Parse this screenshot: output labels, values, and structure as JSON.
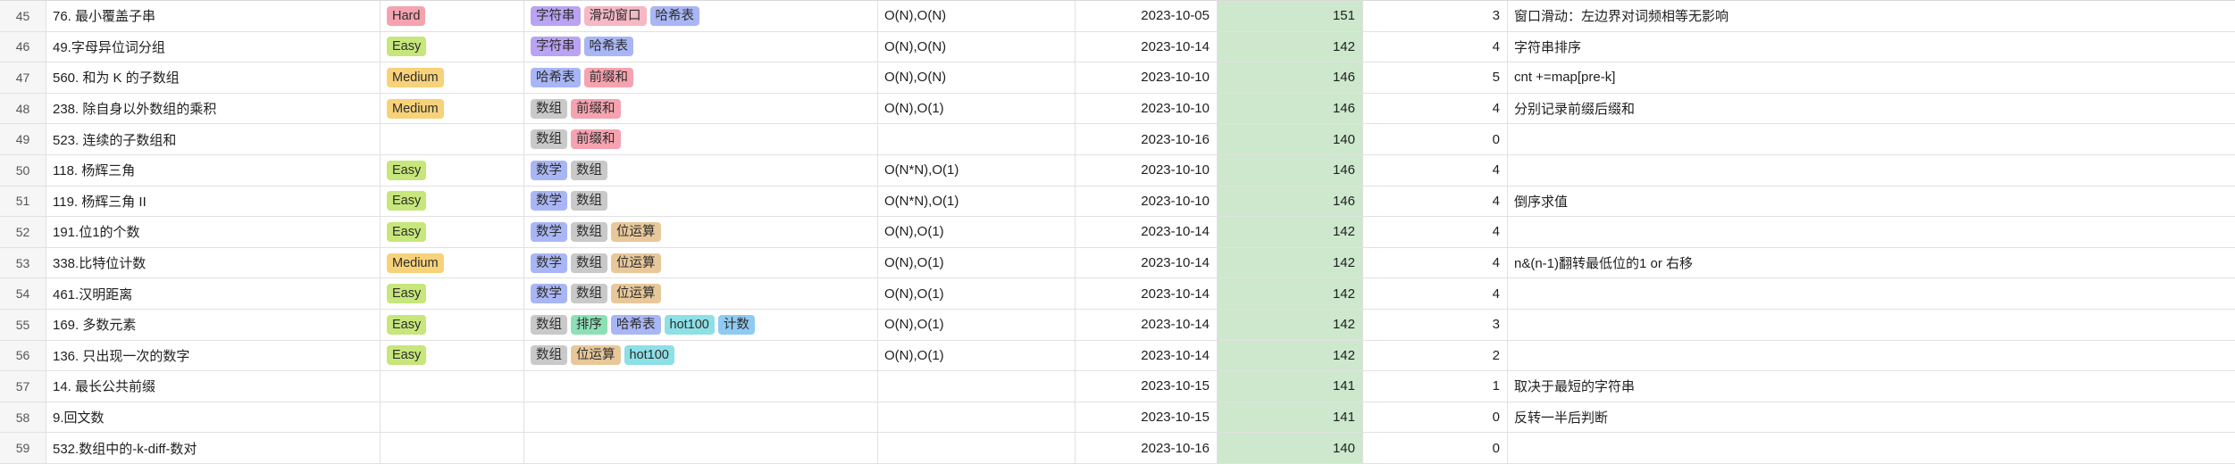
{
  "rows": [
    {
      "num": "45",
      "title": "76. 最小覆盖子串",
      "difficulty": "Hard",
      "diff_class": "diff-hard",
      "tags": [
        {
          "label": "字符串",
          "cls": "tag-zifuchuan"
        },
        {
          "label": "滑动窗口",
          "cls": "tag-huadong"
        },
        {
          "label": "哈希表",
          "cls": "tag-haxi"
        }
      ],
      "complexity": "O(N),O(N)",
      "date": "2023-10-05",
      "days": "151",
      "count": "3",
      "note": "窗口滑动：左边界对词频相等无影响"
    },
    {
      "num": "46",
      "title": "49.字母异位词分组",
      "difficulty": "Easy",
      "diff_class": "diff-easy",
      "tags": [
        {
          "label": "字符串",
          "cls": "tag-zifuchuan"
        },
        {
          "label": "哈希表",
          "cls": "tag-haxi"
        }
      ],
      "complexity": "O(N),O(N)",
      "date": "2023-10-14",
      "days": "142",
      "count": "4",
      "note": "字符串排序"
    },
    {
      "num": "47",
      "title": "560. 和为 K 的子数组",
      "difficulty": "Medium",
      "diff_class": "diff-medium",
      "tags": [
        {
          "label": "哈希表",
          "cls": "tag-haxi"
        },
        {
          "label": "前缀和",
          "cls": "tag-qianzhui"
        }
      ],
      "complexity": "O(N),O(N)",
      "date": "2023-10-10",
      "days": "146",
      "count": "5",
      "note": "cnt +=map[pre-k]"
    },
    {
      "num": "48",
      "title": "238. 除自身以外数组的乘积",
      "difficulty": "Medium",
      "diff_class": "diff-medium",
      "tags": [
        {
          "label": "数组",
          "cls": "tag-shuzu"
        },
        {
          "label": "前缀和",
          "cls": "tag-qianzhui"
        }
      ],
      "complexity": "O(N),O(1)",
      "date": "2023-10-10",
      "days": "146",
      "count": "4",
      "note": "分别记录前缀后缀和"
    },
    {
      "num": "49",
      "title": "523. 连续的子数组和",
      "difficulty": "",
      "diff_class": "",
      "tags": [
        {
          "label": "数组",
          "cls": "tag-shuzu"
        },
        {
          "label": "前缀和",
          "cls": "tag-qianzhui"
        }
      ],
      "complexity": "",
      "date": "2023-10-16",
      "days": "140",
      "count": "0",
      "note": ""
    },
    {
      "num": "50",
      "title": "118. 杨辉三角",
      "difficulty": "Easy",
      "diff_class": "diff-easy",
      "tags": [
        {
          "label": "数学",
          "cls": "tag-shuxue"
        },
        {
          "label": "数组",
          "cls": "tag-shuzu"
        }
      ],
      "complexity": "O(N*N),O(1)",
      "date": "2023-10-10",
      "days": "146",
      "count": "4",
      "note": ""
    },
    {
      "num": "51",
      "title": "119. 杨辉三角 II",
      "difficulty": "Easy",
      "diff_class": "diff-easy",
      "tags": [
        {
          "label": "数学",
          "cls": "tag-shuxue"
        },
        {
          "label": "数组",
          "cls": "tag-shuzu"
        }
      ],
      "complexity": "O(N*N),O(1)",
      "date": "2023-10-10",
      "days": "146",
      "count": "4",
      "note": "倒序求值"
    },
    {
      "num": "52",
      "title": "191.位1的个数",
      "difficulty": "Easy",
      "diff_class": "diff-easy",
      "tags": [
        {
          "label": "数学",
          "cls": "tag-shuxue"
        },
        {
          "label": "数组",
          "cls": "tag-shuzu"
        },
        {
          "label": "位运算",
          "cls": "tag-weiyunsuan"
        }
      ],
      "complexity": "O(N),O(1)",
      "date": "2023-10-14",
      "days": "142",
      "count": "4",
      "note": ""
    },
    {
      "num": "53",
      "title": "338.比特位计数",
      "difficulty": "Medium",
      "diff_class": "diff-medium",
      "tags": [
        {
          "label": "数学",
          "cls": "tag-shuxue"
        },
        {
          "label": "数组",
          "cls": "tag-shuzu"
        },
        {
          "label": "位运算",
          "cls": "tag-weiyunsuan"
        }
      ],
      "complexity": "O(N),O(1)",
      "date": "2023-10-14",
      "days": "142",
      "count": "4",
      "note": "n&(n-1)翻转最低位的1 or 右移"
    },
    {
      "num": "54",
      "title": "461.汉明距离",
      "difficulty": "Easy",
      "diff_class": "diff-easy",
      "tags": [
        {
          "label": "数学",
          "cls": "tag-shuxue"
        },
        {
          "label": "数组",
          "cls": "tag-shuzu"
        },
        {
          "label": "位运算",
          "cls": "tag-weiyunsuan"
        }
      ],
      "complexity": "O(N),O(1)",
      "date": "2023-10-14",
      "days": "142",
      "count": "4",
      "note": ""
    },
    {
      "num": "55",
      "title": "169. 多数元素",
      "difficulty": "Easy",
      "diff_class": "diff-easy",
      "tags": [
        {
          "label": "数组",
          "cls": "tag-shuzu"
        },
        {
          "label": "排序",
          "cls": "tag-paixu"
        },
        {
          "label": "哈希表",
          "cls": "tag-haxi"
        },
        {
          "label": "hot100",
          "cls": "tag-hot100"
        },
        {
          "label": "计数",
          "cls": "tag-jishu"
        }
      ],
      "complexity": "O(N),O(1)",
      "date": "2023-10-14",
      "days": "142",
      "count": "3",
      "note": ""
    },
    {
      "num": "56",
      "title": "136. 只出现一次的数字",
      "difficulty": "Easy",
      "diff_class": "diff-easy",
      "tags": [
        {
          "label": "数组",
          "cls": "tag-shuzu"
        },
        {
          "label": "位运算",
          "cls": "tag-weiyunsuan"
        },
        {
          "label": "hot100",
          "cls": "tag-hot100"
        }
      ],
      "complexity": "O(N),O(1)",
      "date": "2023-10-14",
      "days": "142",
      "count": "2",
      "note": ""
    },
    {
      "num": "57",
      "title": "14. 最长公共前缀",
      "difficulty": "",
      "diff_class": "",
      "tags": [],
      "complexity": "",
      "date": "2023-10-15",
      "days": "141",
      "count": "1",
      "note": "取决于最短的字符串"
    },
    {
      "num": "58",
      "title": "9.回文数",
      "difficulty": "",
      "diff_class": "",
      "tags": [],
      "complexity": "",
      "date": "2023-10-15",
      "days": "141",
      "count": "0",
      "note": "反转一半后判断"
    },
    {
      "num": "59",
      "title": "532.数组中的-k-diff-数对",
      "difficulty": "",
      "diff_class": "",
      "tags": [],
      "complexity": "",
      "date": "2023-10-16",
      "days": "140",
      "count": "0",
      "note": ""
    }
  ],
  "colors": {
    "days_highlight": "#cde8cd",
    "grid_line": "#e1e1e1"
  }
}
